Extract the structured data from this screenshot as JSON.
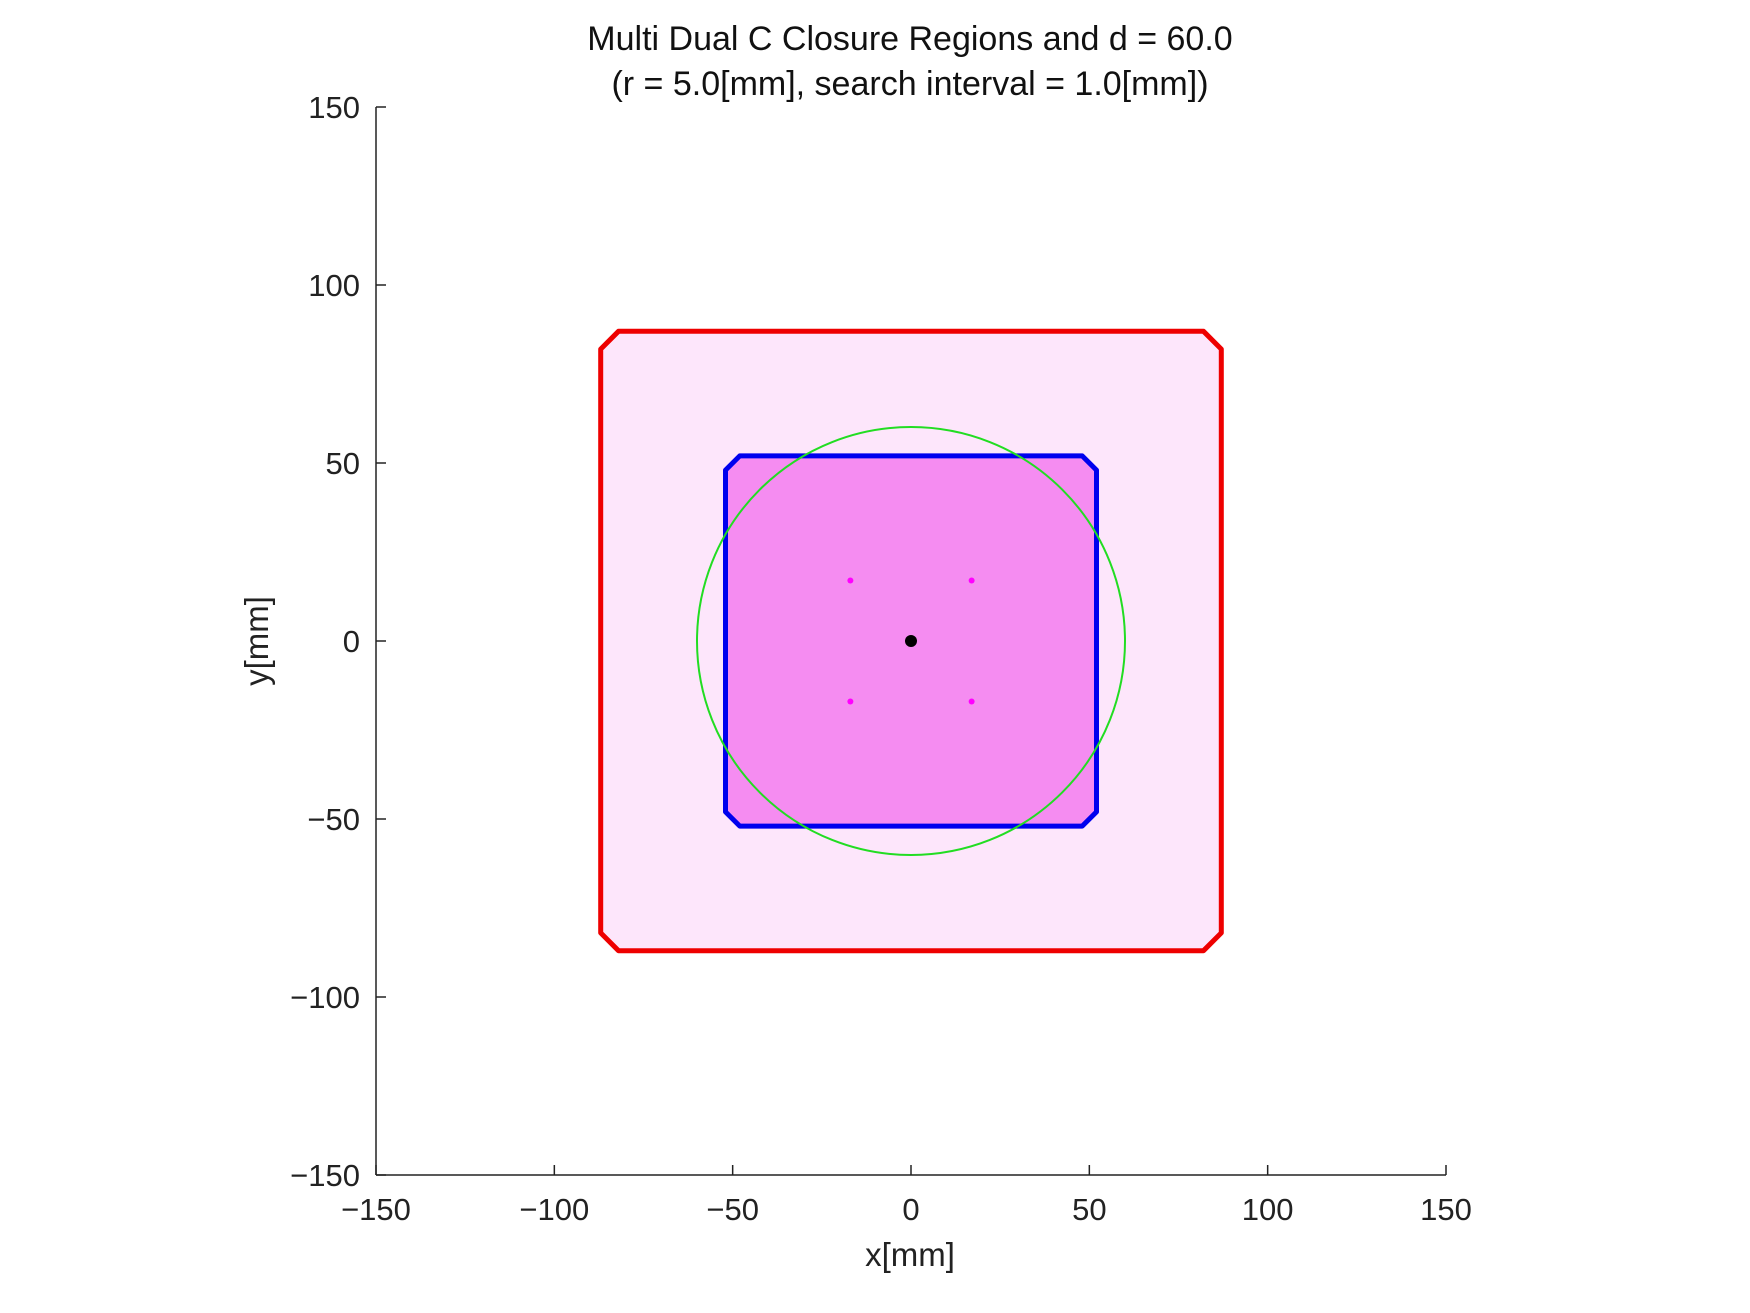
{
  "chart_data": {
    "type": "scatter",
    "title": "Multi Dual C Closure Regions and d = 60.0",
    "subtitle": "(r = 5.0[mm], search interval =  1.0[mm])",
    "xlabel": "x[mm]",
    "ylabel": "y[mm]",
    "xlim": [
      -150,
      150
    ],
    "ylim": [
      -150,
      150
    ],
    "x_ticks": [
      -150,
      -100,
      -50,
      0,
      50,
      100,
      150
    ],
    "y_ticks": [
      -150,
      -100,
      -50,
      0,
      50,
      100,
      150
    ],
    "x_tick_labels": [
      "−150",
      "−100",
      "−50",
      "0",
      "50",
      "100",
      "150"
    ],
    "y_tick_labels": [
      "−150",
      "−100",
      "−50",
      "0",
      "50",
      "100",
      "150"
    ],
    "grid": false,
    "aspect": "equal",
    "series": [
      {
        "kind": "filled-region",
        "fill": "#fde6fb",
        "edge": "#ee0000",
        "polygon": [
          [
            -82,
            87
          ],
          [
            82,
            87
          ],
          [
            87,
            82
          ],
          [
            87,
            -82
          ],
          [
            82,
            -87
          ],
          [
            -82,
            -87
          ],
          [
            -87,
            -82
          ],
          [
            -87,
            82
          ]
        ]
      },
      {
        "kind": "filled-region",
        "fill": "#f58cf1",
        "edge": "#0000ee",
        "polygon": [
          [
            -48,
            52
          ],
          [
            48,
            52
          ],
          [
            52,
            48
          ],
          [
            52,
            -48
          ],
          [
            48,
            -52
          ],
          [
            -48,
            -52
          ],
          [
            -52,
            -48
          ],
          [
            -52,
            48
          ]
        ]
      },
      {
        "kind": "circle",
        "center": [
          0,
          0
        ],
        "radius": 60,
        "color": "#22dd22"
      },
      {
        "kind": "points",
        "color": "#ff00ff",
        "points": [
          [
            -17,
            17
          ],
          [
            17,
            17
          ],
          [
            -17,
            -17
          ],
          [
            17,
            -17
          ]
        ]
      },
      {
        "kind": "points",
        "color": "#000000",
        "points": [
          [
            0,
            0
          ]
        ]
      }
    ]
  }
}
